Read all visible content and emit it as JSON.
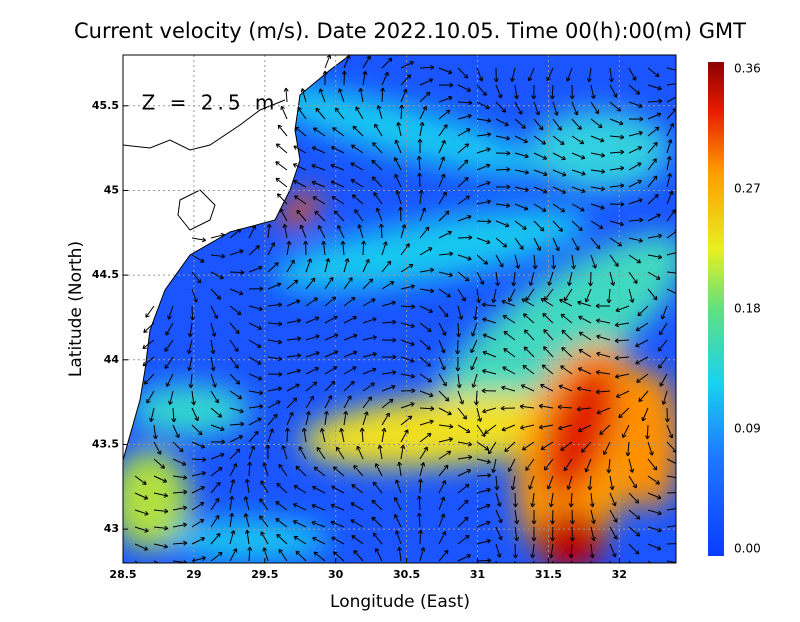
{
  "title": "Current velocity (m/s). Date 2022.10.05. Time 00(h):00(m) GMT",
  "depth_label": "Z = 2.5 m",
  "x_axis": {
    "label": "Longitude (East)",
    "lim": [
      28.5,
      32.4
    ],
    "ticks": [
      28.5,
      29,
      29.5,
      30,
      30.5,
      31,
      31.5,
      32
    ]
  },
  "y_axis": {
    "label": "Latitude (North)",
    "lim": [
      42.8,
      45.8
    ],
    "ticks": [
      43,
      43.5,
      44,
      44.5,
      45,
      45.5
    ]
  },
  "colorbar": {
    "lim": [
      0,
      0.36
    ],
    "ticks": [
      {
        "value": 0,
        "label": "0.00"
      },
      0.09,
      0.18,
      0.27,
      0.36
    ]
  }
}
